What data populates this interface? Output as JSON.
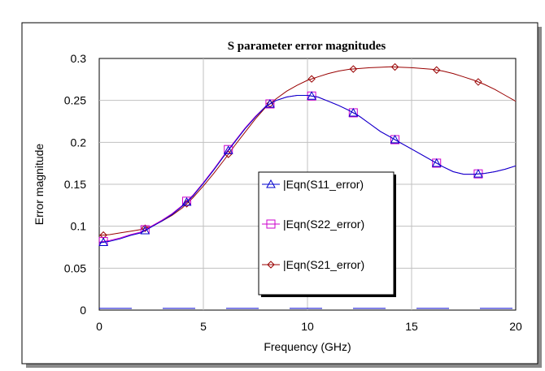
{
  "chart_data": {
    "type": "line",
    "title": "S parameter error magnitudes",
    "xlabel": "Frequency (GHz)",
    "ylabel": "Error magnitude",
    "xlim": [
      0,
      20
    ],
    "ylim": [
      0,
      0.3
    ],
    "x_ticks": [
      "0",
      "5",
      "10",
      "15",
      "20"
    ],
    "y_ticks": [
      "0",
      "0.05",
      "0.1",
      "0.15",
      "0.2",
      "0.25",
      "0.3"
    ],
    "grid": true,
    "legend_position": "center",
    "x": [
      0,
      0.5,
      1,
      1.5,
      2,
      2.5,
      3,
      3.5,
      4,
      4.5,
      5,
      5.5,
      6,
      6.5,
      7,
      7.5,
      8,
      8.5,
      9,
      9.5,
      10,
      10.5,
      11,
      11.5,
      12,
      12.5,
      13,
      13.5,
      14,
      14.5,
      15,
      15.5,
      16,
      16.5,
      17,
      17.5,
      18,
      18.5,
      19,
      19.5,
      20
    ],
    "series": [
      {
        "name": "|Eqn(S11_error)",
        "color": "#0000cc",
        "marker": "triangle",
        "marker_x": [
          0.2,
          2.2,
          4.2,
          6.2,
          8.2,
          10.2,
          12.2,
          14.2,
          16.2,
          18.2
        ],
        "values": [
          0.08,
          0.082,
          0.085,
          0.089,
          0.092,
          0.099,
          0.106,
          0.114,
          0.124,
          0.136,
          0.151,
          0.167,
          0.184,
          0.2,
          0.216,
          0.23,
          0.243,
          0.25,
          0.254,
          0.256,
          0.256,
          0.254,
          0.249,
          0.244,
          0.238,
          0.231,
          0.222,
          0.213,
          0.206,
          0.199,
          0.192,
          0.185,
          0.178,
          0.171,
          0.165,
          0.162,
          0.162,
          0.163,
          0.165,
          0.168,
          0.172
        ]
      },
      {
        "name": "|Eqn(S22_error)",
        "color": "#cc00cc",
        "marker": "square",
        "marker_x": [
          0.2,
          2.2,
          4.2,
          6.2,
          8.2,
          10.2,
          12.2,
          14.2,
          16.2,
          18.2
        ],
        "values": [
          0.081,
          0.083,
          0.086,
          0.09,
          0.093,
          0.1,
          0.107,
          0.115,
          0.125,
          0.137,
          0.152,
          0.168,
          0.185,
          0.201,
          0.217,
          0.231,
          0.243,
          0.25,
          0.254,
          0.256,
          0.256,
          0.254,
          0.249,
          0.244,
          0.238,
          0.231,
          0.222,
          0.213,
          0.206,
          0.199,
          0.192,
          0.185,
          0.178,
          0.171,
          0.165,
          0.162,
          0.162,
          0.163,
          0.165,
          0.168,
          0.172
        ]
      },
      {
        "name": "|Eqn(S21_error)",
        "color": "#990000",
        "marker": "diamond",
        "marker_x": [
          0.2,
          2.2,
          4.2,
          6.2,
          8.2,
          10.2,
          12.2,
          14.2,
          16.2,
          18.2
        ],
        "values": [
          0.089,
          0.09,
          0.092,
          0.094,
          0.096,
          0.1,
          0.106,
          0.113,
          0.122,
          0.134,
          0.148,
          0.163,
          0.179,
          0.196,
          0.212,
          0.228,
          0.242,
          0.252,
          0.261,
          0.268,
          0.274,
          0.278,
          0.282,
          0.285,
          0.287,
          0.288,
          0.289,
          0.2895,
          0.29,
          0.2895,
          0.289,
          0.288,
          0.287,
          0.285,
          0.282,
          0.278,
          0.274,
          0.269,
          0.263,
          0.256,
          0.249
        ]
      }
    ]
  }
}
